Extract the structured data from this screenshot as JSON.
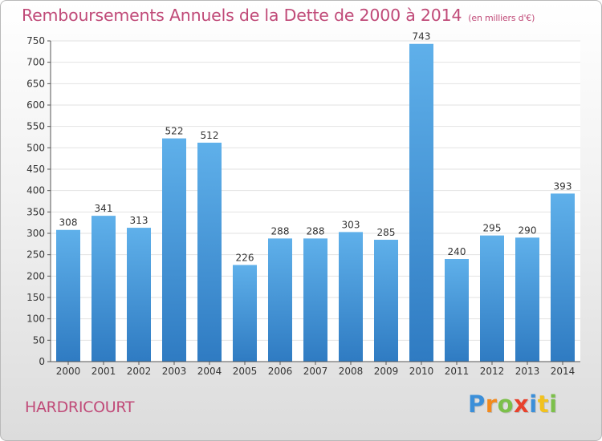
{
  "title": "Remboursements Annuels de la Dette de 2000 à 2014",
  "unit": "(en milliers d'€)",
  "place": "HARDRICOURT",
  "logo": {
    "letters": [
      "P",
      "r",
      "o",
      "x",
      "i",
      "t",
      "i"
    ],
    "colors": [
      "#3b8fd9",
      "#f28a1e",
      "#7cc04a",
      "#e8412c",
      "#3b8fd9",
      "#f2c21e",
      "#7cc04a"
    ]
  },
  "colors": {
    "title": "#c04a78",
    "bar_top": "#5fb0ea",
    "bar_bottom": "#2f7bc2",
    "grid": "#e2e2e2"
  },
  "chart_data": {
    "type": "bar",
    "categories": [
      "2000",
      "2001",
      "2002",
      "2003",
      "2004",
      "2005",
      "2006",
      "2007",
      "2008",
      "2009",
      "2010",
      "2011",
      "2012",
      "2013",
      "2014"
    ],
    "values": [
      308,
      341,
      313,
      522,
      512,
      226,
      288,
      288,
      303,
      285,
      743,
      240,
      295,
      290,
      393
    ],
    "y_ticks": [
      0,
      50,
      100,
      150,
      200,
      250,
      300,
      350,
      400,
      450,
      500,
      550,
      600,
      650,
      700,
      750
    ],
    "ylim": [
      0,
      750
    ],
    "grid": true
  }
}
